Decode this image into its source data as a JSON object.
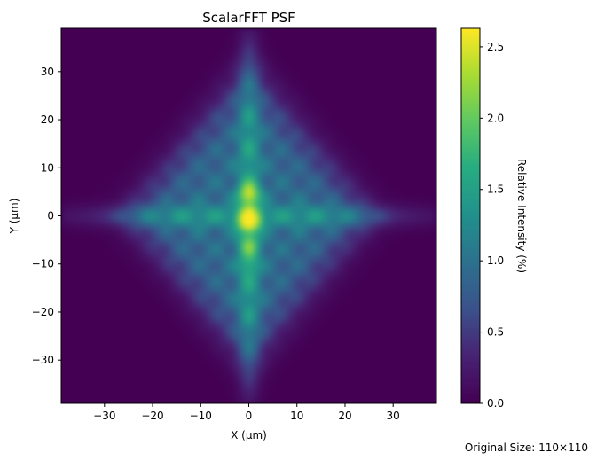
{
  "chart_data": {
    "type": "heatmap",
    "title": "ScalarFFT PSF",
    "xlabel": "X (µm)",
    "ylabel": "Y (µm)",
    "xlim": [
      -39,
      39
    ],
    "ylim": [
      -39,
      39
    ],
    "x_ticks": [
      -30,
      -20,
      -10,
      0,
      10,
      20,
      30
    ],
    "y_ticks": [
      -30,
      -20,
      -10,
      0,
      10,
      20,
      30
    ],
    "colormap": "viridis",
    "colorbar": {
      "label": "Relative Intensity (%)",
      "range": [
        0,
        2.63
      ],
      "ticks": [
        0.0,
        0.5,
        1.0,
        1.5,
        2.0,
        2.5
      ],
      "tick_labels": [
        "0.0",
        "0.5",
        "1.0",
        "1.5",
        "2.0",
        "2.5"
      ]
    },
    "hotspots": [
      {
        "x": 0,
        "y": -1,
        "value": 2.6
      },
      {
        "x": 0,
        "y": 4.5,
        "value": 2.3
      },
      {
        "x": 0,
        "y": -6,
        "value": 1.8
      },
      {
        "x": 0,
        "y": -10,
        "value": 1.5
      }
    ],
    "grid": false
  },
  "footer": {
    "original_size": "Original Size: 110×110"
  }
}
